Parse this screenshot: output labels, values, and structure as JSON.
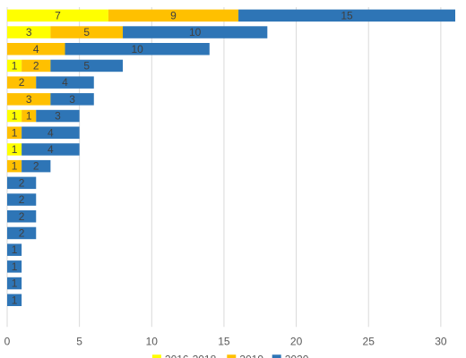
{
  "chart_data": {
    "type": "bar",
    "orientation": "horizontal",
    "stacked": true,
    "title": "",
    "xlabel": "",
    "ylabel": "",
    "xlim": [
      0,
      31
    ],
    "xticks": [
      0,
      5,
      10,
      15,
      20,
      25,
      30
    ],
    "grid": true,
    "legend_position": "bottom",
    "categories": [
      "",
      "",
      "",
      "",
      "",
      "",
      "",
      "",
      "",
      "",
      "",
      "",
      "",
      "",
      "",
      "",
      "",
      "",
      ""
    ],
    "series": [
      {
        "name": "2016-2018",
        "color": "#FFFF00",
        "values": [
          7,
          3,
          0,
          1,
          0,
          0,
          1,
          0,
          1,
          0,
          0,
          0,
          0,
          0,
          0,
          0,
          0,
          0,
          0
        ]
      },
      {
        "name": "2019",
        "color": "#FFC000",
        "values": [
          9,
          5,
          4,
          2,
          2,
          3,
          1,
          1,
          0,
          1,
          0,
          0,
          0,
          0,
          0,
          0,
          0,
          0,
          0
        ]
      },
      {
        "name": "2020",
        "color": "#2E75B6",
        "values": [
          15,
          10,
          10,
          5,
          4,
          3,
          3,
          4,
          4,
          2,
          2,
          2,
          2,
          2,
          1,
          1,
          1,
          1,
          0
        ]
      }
    ]
  }
}
